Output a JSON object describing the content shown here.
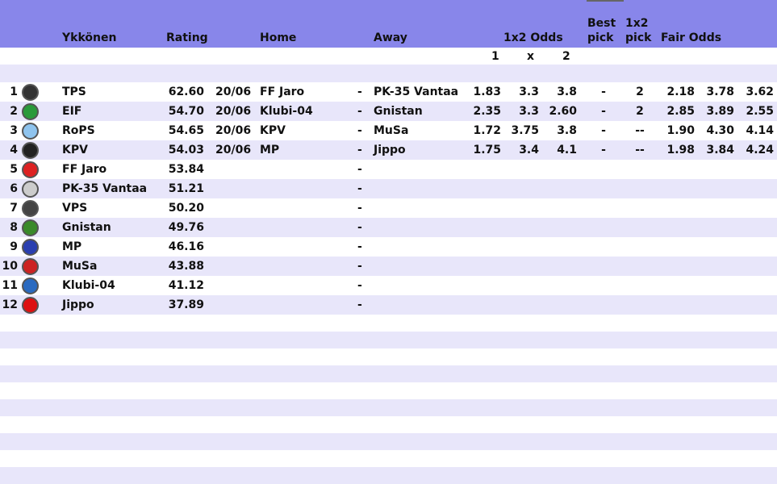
{
  "header": {
    "league": "Ykkönen",
    "rating": "Rating",
    "home": "Home",
    "away": "Away",
    "odds": "1x2 Odds",
    "best_pick": "Best\npick",
    "best_pick_l1": "Best",
    "best_pick_l2": "pick",
    "pick_l1": "1x2",
    "pick_l2": "pick",
    "fair_odds": "Fair Odds",
    "sub1": "1",
    "subx": "x",
    "sub2": "2"
  },
  "colors": {
    "header": "#8886ea",
    "stripe": "#e8e6fa"
  },
  "teams": [
    {
      "rank": "1",
      "name": "TPS",
      "rating": "62.60",
      "date": "20/06",
      "home": "FF Jaro",
      "dash": "-",
      "away": "PK-35 Vantaa",
      "o1": "1.83",
      "ox": "3.3",
      "o2": "3.8",
      "best": "-",
      "pick": "2",
      "f1": "2.18",
      "fx": "3.78",
      "f2": "3.62",
      "logo": "#333"
    },
    {
      "rank": "2",
      "name": "EIF",
      "rating": "54.70",
      "date": "20/06",
      "home": "Klubi-04",
      "dash": "-",
      "away": "Gnistan",
      "o1": "2.35",
      "ox": "3.3",
      "o2": "2.60",
      "best": "-",
      "pick": "2",
      "f1": "2.85",
      "fx": "3.89",
      "f2": "2.55",
      "logo": "#2a9a3a"
    },
    {
      "rank": "3",
      "name": "RoPS",
      "rating": "54.65",
      "date": "20/06",
      "home": "KPV",
      "dash": "-",
      "away": "MuSa",
      "o1": "1.72",
      "ox": "3.75",
      "o2": "3.8",
      "best": "-",
      "pick": "--",
      "f1": "1.90",
      "fx": "4.30",
      "f2": "4.14",
      "logo": "#8fc4ee"
    },
    {
      "rank": "4",
      "name": "KPV",
      "rating": "54.03",
      "date": "20/06",
      "home": "MP",
      "dash": "-",
      "away": "Jippo",
      "o1": "1.75",
      "ox": "3.4",
      "o2": "4.1",
      "best": "-",
      "pick": "--",
      "f1": "1.98",
      "fx": "3.84",
      "f2": "4.24",
      "logo": "#222"
    },
    {
      "rank": "5",
      "name": "FF Jaro",
      "rating": "53.84",
      "dash": "-",
      "logo": "#d22"
    },
    {
      "rank": "6",
      "name": "PK-35 Vantaa",
      "rating": "51.21",
      "dash": "-",
      "logo": "#ccc"
    },
    {
      "rank": "7",
      "name": "VPS",
      "rating": "50.20",
      "dash": "-",
      "logo": "#444"
    },
    {
      "rank": "8",
      "name": "Gnistan",
      "rating": "49.76",
      "dash": "-",
      "logo": "#3a8a2a"
    },
    {
      "rank": "9",
      "name": "MP",
      "rating": "46.16",
      "dash": "-",
      "logo": "#2a3fb0"
    },
    {
      "rank": "10",
      "name": "MuSa",
      "rating": "43.88",
      "dash": "-",
      "logo": "#c22"
    },
    {
      "rank": "11",
      "name": "Klubi-04",
      "rating": "41.12",
      "dash": "-",
      "logo": "#2a6ac0"
    },
    {
      "rank": "12",
      "name": "Jippo",
      "rating": "37.89",
      "dash": "-",
      "logo": "#d11"
    }
  ]
}
